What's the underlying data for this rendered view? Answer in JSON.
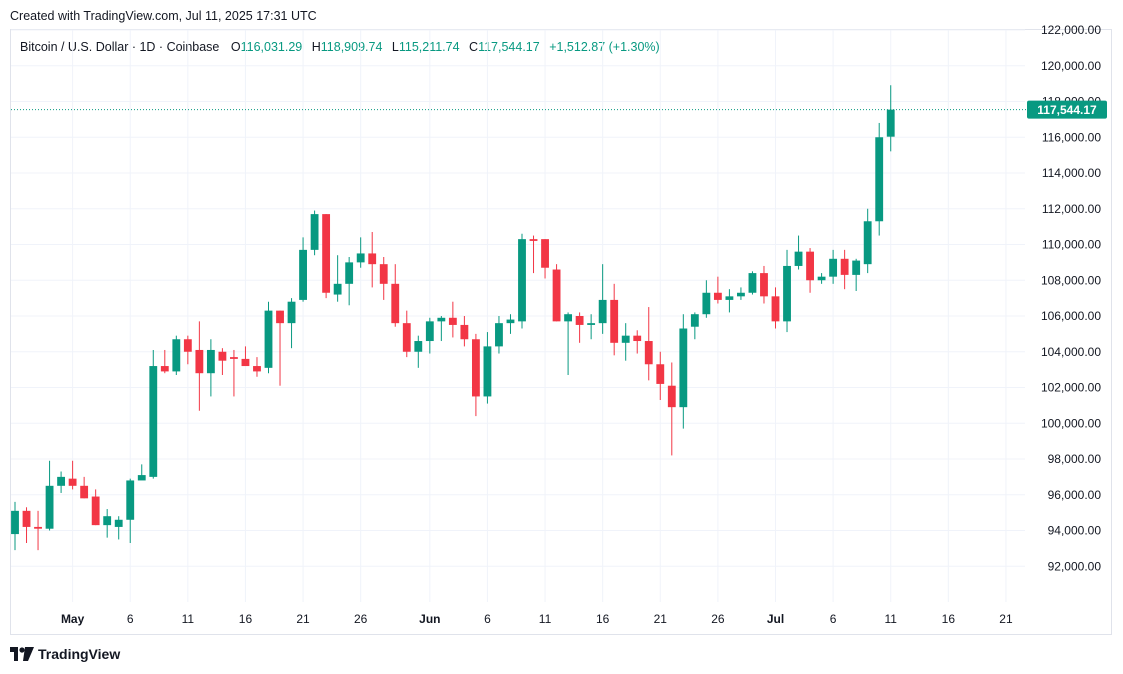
{
  "header": {
    "created_text": "Created with TradingView.com, Jul 11, 2025 17:31 UTC"
  },
  "legend": {
    "symbol": "Bitcoin / U.S. Dollar · 1D · Coinbase",
    "open_label": "O",
    "open_value": "116,031.29",
    "high_label": "H",
    "high_value": "118,909.74",
    "low_label": "L",
    "low_value": "115,211.74",
    "close_label": "C",
    "close_value": "117,544.17",
    "change": "+1,512.87 (+1.30%)"
  },
  "footer": {
    "brand": "TradingView",
    "logo_icon": "tradingview-logo-icon"
  },
  "colors": {
    "up": "#089981",
    "down": "#f23645",
    "grid": "#f0f3fa",
    "axis_text": "#131722",
    "last_price_bg": "#089981"
  },
  "chart_data": {
    "type": "candlestick",
    "title": "",
    "xlabel": "",
    "ylabel": "",
    "ylim": [
      90000,
      122000
    ],
    "grid": true,
    "y_ticks": [
      "92,000.00",
      "94,000.00",
      "96,000.00",
      "98,000.00",
      "100,000.00",
      "102,000.00",
      "104,000.00",
      "106,000.00",
      "108,000.00",
      "110,000.00",
      "112,000.00",
      "114,000.00",
      "116,000.00",
      "118,000.00",
      "120,000.00",
      "122,000.00"
    ],
    "x_ticks": [
      {
        "label": "May",
        "date": "2025-05-01"
      },
      {
        "label": "6",
        "date": "2025-05-06"
      },
      {
        "label": "11",
        "date": "2025-05-11"
      },
      {
        "label": "16",
        "date": "2025-05-16"
      },
      {
        "label": "21",
        "date": "2025-05-21"
      },
      {
        "label": "26",
        "date": "2025-05-26"
      },
      {
        "label": "Jun",
        "date": "2025-06-01"
      },
      {
        "label": "6",
        "date": "2025-06-06"
      },
      {
        "label": "11",
        "date": "2025-06-11"
      },
      {
        "label": "16",
        "date": "2025-06-16"
      },
      {
        "label": "21",
        "date": "2025-06-21"
      },
      {
        "label": "26",
        "date": "2025-06-26"
      },
      {
        "label": "Jul",
        "date": "2025-07-01"
      },
      {
        "label": "6",
        "date": "2025-07-06"
      },
      {
        "label": "11",
        "date": "2025-07-11"
      },
      {
        "label": "16",
        "date": "2025-07-16"
      },
      {
        "label": "21",
        "date": "2025-07-21"
      }
    ],
    "x_start_date": "2025-04-26",
    "x_end_date": "2025-07-23",
    "last_price": 117544.17,
    "last_price_label": "117,544.17",
    "candles": [
      {
        "date": "2025-04-26",
        "o": 93800,
        "h": 95600,
        "l": 92900,
        "c": 95100
      },
      {
        "date": "2025-04-27",
        "o": 95100,
        "h": 95300,
        "l": 93300,
        "c": 94200
      },
      {
        "date": "2025-04-28",
        "o": 94200,
        "h": 95100,
        "l": 92900,
        "c": 94100
      },
      {
        "date": "2025-04-29",
        "o": 94100,
        "h": 97900,
        "l": 94000,
        "c": 96500
      },
      {
        "date": "2025-04-30",
        "o": 96500,
        "h": 97300,
        "l": 96100,
        "c": 97000
      },
      {
        "date": "2025-05-01",
        "o": 96900,
        "h": 97900,
        "l": 96300,
        "c": 96500
      },
      {
        "date": "2025-05-02",
        "o": 96500,
        "h": 97000,
        "l": 95800,
        "c": 95800
      },
      {
        "date": "2025-05-03",
        "o": 95900,
        "h": 96300,
        "l": 94300,
        "c": 94300
      },
      {
        "date": "2025-05-04",
        "o": 94300,
        "h": 95200,
        "l": 93600,
        "c": 94800
      },
      {
        "date": "2025-05-05",
        "o": 94200,
        "h": 94800,
        "l": 93500,
        "c": 94600
      },
      {
        "date": "2025-05-06",
        "o": 94600,
        "h": 96900,
        "l": 93300,
        "c": 96800
      },
      {
        "date": "2025-05-07",
        "o": 96800,
        "h": 97700,
        "l": 96900,
        "c": 97100
      },
      {
        "date": "2025-05-08",
        "o": 97000,
        "h": 104100,
        "l": 96900,
        "c": 103200
      },
      {
        "date": "2025-05-09",
        "o": 103200,
        "h": 104100,
        "l": 102800,
        "c": 102900
      },
      {
        "date": "2025-05-10",
        "o": 102900,
        "h": 104900,
        "l": 102700,
        "c": 104700
      },
      {
        "date": "2025-05-11",
        "o": 104700,
        "h": 104900,
        "l": 103300,
        "c": 104000
      },
      {
        "date": "2025-05-12",
        "o": 104100,
        "h": 105700,
        "l": 100700,
        "c": 102800
      },
      {
        "date": "2025-05-13",
        "o": 102800,
        "h": 104700,
        "l": 101500,
        "c": 104100
      },
      {
        "date": "2025-05-14",
        "o": 104000,
        "h": 104200,
        "l": 102700,
        "c": 103500
      },
      {
        "date": "2025-05-15",
        "o": 103700,
        "h": 104100,
        "l": 101500,
        "c": 103600
      },
      {
        "date": "2025-05-16",
        "o": 103600,
        "h": 104300,
        "l": 103300,
        "c": 103200
      },
      {
        "date": "2025-05-17",
        "o": 103200,
        "h": 103700,
        "l": 102600,
        "c": 102900
      },
      {
        "date": "2025-05-18",
        "o": 103100,
        "h": 106800,
        "l": 102800,
        "c": 106300
      },
      {
        "date": "2025-05-19",
        "o": 106300,
        "h": 106300,
        "l": 102100,
        "c": 105600
      },
      {
        "date": "2025-05-20",
        "o": 105600,
        "h": 107000,
        "l": 104200,
        "c": 106800
      },
      {
        "date": "2025-05-21",
        "o": 106900,
        "h": 110400,
        "l": 106800,
        "c": 109700
      },
      {
        "date": "2025-05-22",
        "o": 109700,
        "h": 111900,
        "l": 109400,
        "c": 111700
      },
      {
        "date": "2025-05-23",
        "o": 111700,
        "h": 111700,
        "l": 107000,
        "c": 107300
      },
      {
        "date": "2025-05-24",
        "o": 107200,
        "h": 109400,
        "l": 106800,
        "c": 107800
      },
      {
        "date": "2025-05-25",
        "o": 107800,
        "h": 109300,
        "l": 106600,
        "c": 109000
      },
      {
        "date": "2025-05-26",
        "o": 109000,
        "h": 110400,
        "l": 108700,
        "c": 109500
      },
      {
        "date": "2025-05-27",
        "o": 109500,
        "h": 110700,
        "l": 107600,
        "c": 108900
      },
      {
        "date": "2025-05-28",
        "o": 108900,
        "h": 109300,
        "l": 106900,
        "c": 107800
      },
      {
        "date": "2025-05-29",
        "o": 107800,
        "h": 108900,
        "l": 105400,
        "c": 105600
      },
      {
        "date": "2025-05-30",
        "o": 105600,
        "h": 106300,
        "l": 103700,
        "c": 104000
      },
      {
        "date": "2025-05-31",
        "o": 104000,
        "h": 104900,
        "l": 103100,
        "c": 104600
      },
      {
        "date": "2025-06-01",
        "o": 104600,
        "h": 105900,
        "l": 103900,
        "c": 105700
      },
      {
        "date": "2025-06-02",
        "o": 105700,
        "h": 106000,
        "l": 104600,
        "c": 105900
      },
      {
        "date": "2025-06-03",
        "o": 105900,
        "h": 106800,
        "l": 104800,
        "c": 105500
      },
      {
        "date": "2025-06-04",
        "o": 105500,
        "h": 106000,
        "l": 104300,
        "c": 104700
      },
      {
        "date": "2025-06-05",
        "o": 104700,
        "h": 105000,
        "l": 100400,
        "c": 101500
      },
      {
        "date": "2025-06-06",
        "o": 101500,
        "h": 105100,
        "l": 101100,
        "c": 104300
      },
      {
        "date": "2025-06-07",
        "o": 104300,
        "h": 106000,
        "l": 103900,
        "c": 105600
      },
      {
        "date": "2025-06-08",
        "o": 105600,
        "h": 106100,
        "l": 105000,
        "c": 105800
      },
      {
        "date": "2025-06-09",
        "o": 105700,
        "h": 110600,
        "l": 105300,
        "c": 110300
      },
      {
        "date": "2025-06-10",
        "o": 110300,
        "h": 110500,
        "l": 108400,
        "c": 110200
      },
      {
        "date": "2025-06-11",
        "o": 110300,
        "h": 110300,
        "l": 108100,
        "c": 108700
      },
      {
        "date": "2025-06-12",
        "o": 108600,
        "h": 108900,
        "l": 105700,
        "c": 105700
      },
      {
        "date": "2025-06-13",
        "o": 105700,
        "h": 106200,
        "l": 102700,
        "c": 106100
      },
      {
        "date": "2025-06-14",
        "o": 106000,
        "h": 106200,
        "l": 104500,
        "c": 105500
      },
      {
        "date": "2025-06-15",
        "o": 105500,
        "h": 106100,
        "l": 104700,
        "c": 105600
      },
      {
        "date": "2025-06-16",
        "o": 105600,
        "h": 108900,
        "l": 105000,
        "c": 106900
      },
      {
        "date": "2025-06-17",
        "o": 106900,
        "h": 107800,
        "l": 103800,
        "c": 104500
      },
      {
        "date": "2025-06-18",
        "o": 104500,
        "h": 105600,
        "l": 103500,
        "c": 104900
      },
      {
        "date": "2025-06-19",
        "o": 104900,
        "h": 105200,
        "l": 103900,
        "c": 104600
      },
      {
        "date": "2025-06-20",
        "o": 104600,
        "h": 106500,
        "l": 102400,
        "c": 103300
      },
      {
        "date": "2025-06-21",
        "o": 103300,
        "h": 104000,
        "l": 101300,
        "c": 102200
      },
      {
        "date": "2025-06-22",
        "o": 102100,
        "h": 103400,
        "l": 98200,
        "c": 100900
      },
      {
        "date": "2025-06-23",
        "o": 100900,
        "h": 106100,
        "l": 99700,
        "c": 105300
      },
      {
        "date": "2025-06-24",
        "o": 105400,
        "h": 106200,
        "l": 104700,
        "c": 106100
      },
      {
        "date": "2025-06-25",
        "o": 106100,
        "h": 108000,
        "l": 105900,
        "c": 107300
      },
      {
        "date": "2025-06-26",
        "o": 107300,
        "h": 108200,
        "l": 106700,
        "c": 106900
      },
      {
        "date": "2025-06-27",
        "o": 106900,
        "h": 107500,
        "l": 106200,
        "c": 107100
      },
      {
        "date": "2025-06-28",
        "o": 107100,
        "h": 107600,
        "l": 106900,
        "c": 107300
      },
      {
        "date": "2025-06-29",
        "o": 107300,
        "h": 108500,
        "l": 107200,
        "c": 108400
      },
      {
        "date": "2025-06-30",
        "o": 108400,
        "h": 108800,
        "l": 106700,
        "c": 107100
      },
      {
        "date": "2025-07-01",
        "o": 107100,
        "h": 107600,
        "l": 105300,
        "c": 105700
      },
      {
        "date": "2025-07-02",
        "o": 105700,
        "h": 109700,
        "l": 105100,
        "c": 108800
      },
      {
        "date": "2025-07-03",
        "o": 108800,
        "h": 110500,
        "l": 108600,
        "c": 109600
      },
      {
        "date": "2025-07-04",
        "o": 109600,
        "h": 109800,
        "l": 107300,
        "c": 108000
      },
      {
        "date": "2025-07-05",
        "o": 108000,
        "h": 108400,
        "l": 107800,
        "c": 108200
      },
      {
        "date": "2025-07-06",
        "o": 108200,
        "h": 109700,
        "l": 107800,
        "c": 109200
      },
      {
        "date": "2025-07-07",
        "o": 109200,
        "h": 109700,
        "l": 107500,
        "c": 108300
      },
      {
        "date": "2025-07-08",
        "o": 108300,
        "h": 109200,
        "l": 107400,
        "c": 109100
      },
      {
        "date": "2025-07-09",
        "o": 108900,
        "h": 112000,
        "l": 108400,
        "c": 111300
      },
      {
        "date": "2025-07-10",
        "o": 111300,
        "h": 116800,
        "l": 110500,
        "c": 116000
      },
      {
        "date": "2025-07-11",
        "o": 116031.29,
        "h": 118909.74,
        "l": 115211.74,
        "c": 117544.17
      }
    ]
  }
}
